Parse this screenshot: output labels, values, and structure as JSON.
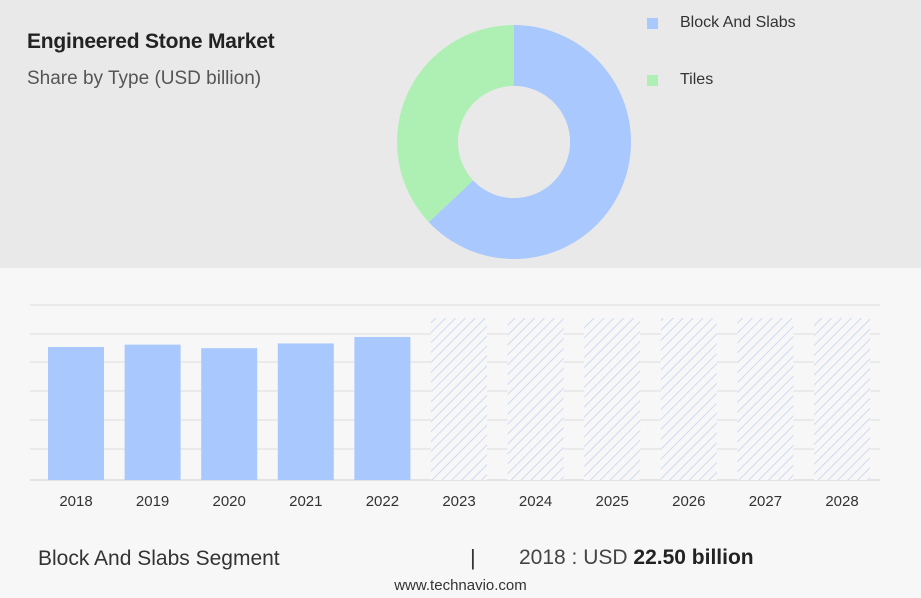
{
  "header": {
    "title": "Engineered Stone Market",
    "subtitle": "Share by Type (USD billion)"
  },
  "legend": [
    {
      "label": "Block And Slabs",
      "color": "#a9c8fd"
    },
    {
      "label": "Tiles",
      "color": "#aef0b3"
    }
  ],
  "chart_data": [
    {
      "type": "pie",
      "variant": "donut",
      "slices": [
        {
          "label": "Block And Slabs",
          "value": 63,
          "color": "#a9c8fd"
        },
        {
          "label": "Tiles",
          "value": 37,
          "color": "#aef0b3"
        }
      ]
    },
    {
      "type": "bar",
      "categories": [
        "2018",
        "2019",
        "2020",
        "2021",
        "2022",
        "2023",
        "2024",
        "2025",
        "2026",
        "2027",
        "2028"
      ],
      "values": [
        22.5,
        22.9,
        22.3,
        23.1,
        24.2,
        null,
        null,
        null,
        null,
        null,
        null
      ],
      "forecast_categories": [
        "2023",
        "2024",
        "2025",
        "2026",
        "2027",
        "2028"
      ],
      "grid": true,
      "bar_color": "#a9c8fd"
    }
  ],
  "footer": {
    "segment_label": "Block And Slabs Segment",
    "separator": "|",
    "value_prefix": "2018 : USD",
    "value_bold": "22.50 billion",
    "website": "www.technavio.com"
  }
}
